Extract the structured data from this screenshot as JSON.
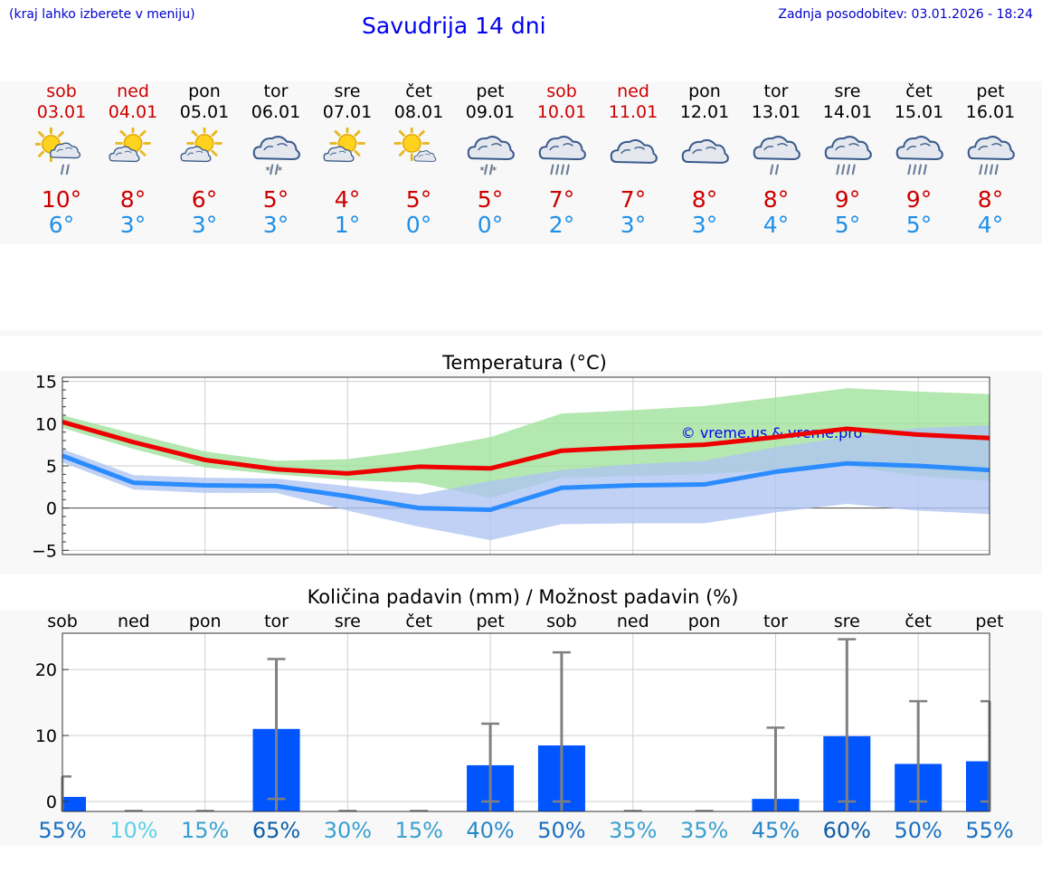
{
  "header": {
    "menu_hint": "(kraj lahko izberete v meniju)",
    "title": "Savudrija 14 dni",
    "updated": "Zadnja posodobitev: 03.01.2026 - 18:24"
  },
  "days": [
    {
      "name": "sob",
      "date": "03.01",
      "weekend": true,
      "icon": "sun-cloud-rain-icon",
      "max": "10°",
      "min": "6°"
    },
    {
      "name": "ned",
      "date": "04.01",
      "weekend": true,
      "icon": "sun-cloud-icon",
      "max": "8°",
      "min": "3°"
    },
    {
      "name": "pon",
      "date": "05.01",
      "weekend": false,
      "icon": "sun-cloud-icon",
      "max": "6°",
      "min": "3°"
    },
    {
      "name": "tor",
      "date": "06.01",
      "weekend": false,
      "icon": "cloud-sleet-icon",
      "max": "5°",
      "min": "3°"
    },
    {
      "name": "sre",
      "date": "07.01",
      "weekend": false,
      "icon": "sun-cloud-icon",
      "max": "4°",
      "min": "1°"
    },
    {
      "name": "čet",
      "date": "08.01",
      "weekend": false,
      "icon": "sun-small-cloud-icon",
      "max": "5°",
      "min": "0°"
    },
    {
      "name": "pet",
      "date": "09.01",
      "weekend": false,
      "icon": "cloud-sleet-icon",
      "max": "5°",
      "min": "0°"
    },
    {
      "name": "sob",
      "date": "10.01",
      "weekend": true,
      "icon": "cloud-heavy-rain-icon",
      "max": "7°",
      "min": "2°"
    },
    {
      "name": "ned",
      "date": "11.01",
      "weekend": true,
      "icon": "cloud-icon",
      "max": "7°",
      "min": "3°"
    },
    {
      "name": "pon",
      "date": "12.01",
      "weekend": false,
      "icon": "cloud-icon",
      "max": "8°",
      "min": "3°"
    },
    {
      "name": "tor",
      "date": "13.01",
      "weekend": false,
      "icon": "cloud-rain-icon",
      "max": "8°",
      "min": "4°"
    },
    {
      "name": "sre",
      "date": "14.01",
      "weekend": false,
      "icon": "cloud-heavy-rain-icon",
      "max": "9°",
      "min": "5°"
    },
    {
      "name": "čet",
      "date": "15.01",
      "weekend": false,
      "icon": "cloud-heavy-rain-icon",
      "max": "9°",
      "min": "5°"
    },
    {
      "name": "pet",
      "date": "16.01",
      "weekend": false,
      "icon": "cloud-heavy-rain-icon",
      "max": "8°",
      "min": "4°"
    }
  ],
  "colors": {
    "max": "#cc0000",
    "min": "#1e8fe8",
    "weekend": "#cc0000",
    "link": "#0000cc"
  },
  "chart_data": [
    {
      "type": "line",
      "title": "Temperatura (°C)",
      "watermark": "© vreme.us & vreme.pro",
      "ylim": [
        -5.5,
        15.5
      ],
      "yticks": [
        -5,
        0,
        5,
        10,
        15
      ],
      "ytick_labels": [
        "−5",
        "0",
        "5",
        "10",
        "15"
      ],
      "x": [
        0,
        1,
        2,
        3,
        4,
        5,
        6,
        7,
        8,
        9,
        10,
        11,
        12,
        13
      ],
      "series": [
        {
          "name": "max",
          "color": "#ee0000",
          "values": [
            10.2,
            7.8,
            5.7,
            4.6,
            4.1,
            4.9,
            4.7,
            6.8,
            7.2,
            7.5,
            8.4,
            9.4,
            8.7,
            8.3
          ]
        },
        {
          "name": "min",
          "color": "#2b8cff",
          "values": [
            6.2,
            3.0,
            2.7,
            2.6,
            1.4,
            0.0,
            -0.2,
            2.4,
            2.7,
            2.8,
            4.3,
            5.3,
            5.0,
            4.5
          ]
        }
      ],
      "bands": [
        {
          "name": "max-range",
          "color": "#9ee19a",
          "low": [
            9.5,
            7.0,
            4.8,
            4.0,
            3.3,
            3.0,
            1.2,
            3.6,
            3.8,
            4.0,
            4.5,
            5.0,
            3.8,
            3.2
          ],
          "high": [
            11.0,
            8.8,
            6.7,
            5.6,
            5.8,
            6.9,
            8.4,
            11.2,
            11.6,
            12.1,
            13.1,
            14.2,
            13.8,
            13.5
          ]
        },
        {
          "name": "min-range",
          "color": "#aec4f2",
          "low": [
            5.4,
            2.2,
            1.8,
            1.8,
            -0.3,
            -2.2,
            -3.8,
            -1.9,
            -1.8,
            -1.8,
            -0.5,
            0.5,
            -0.3,
            -0.7
          ],
          "high": [
            7.0,
            3.9,
            3.6,
            3.5,
            2.6,
            1.6,
            3.2,
            4.5,
            5.2,
            5.6,
            7.2,
            8.4,
            9.5,
            9.8
          ]
        }
      ]
    },
    {
      "type": "bar",
      "title": "Količina padavin (mm) / Možnost padavin (%)",
      "categories": [
        "sob",
        "ned",
        "pon",
        "tor",
        "sre",
        "čet",
        "pet",
        "sob",
        "ned",
        "pon",
        "tor",
        "sre",
        "čet",
        "pet"
      ],
      "ylim": [
        -1.5,
        25.5
      ],
      "yticks": [
        0,
        10,
        20
      ],
      "ytick_labels": [
        "0",
        "10",
        "20"
      ],
      "values": [
        0.7,
        0,
        0,
        11.0,
        0,
        0,
        5.5,
        8.5,
        0,
        0,
        0.4,
        9.9,
        5.7,
        6.1
      ],
      "err_high": [
        3.8,
        0,
        0,
        21.6,
        0,
        0,
        11.8,
        22.6,
        0,
        0,
        11.2,
        24.6,
        15.2,
        15.2
      ],
      "err_low": [
        0,
        0,
        0,
        0.4,
        0,
        0,
        0,
        0,
        0,
        0,
        0,
        0,
        0,
        0
      ],
      "bar_color": "#0055ff",
      "probabilities": [
        "55%",
        "10%",
        "15%",
        "65%",
        "30%",
        "15%",
        "40%",
        "50%",
        "35%",
        "35%",
        "45%",
        "60%",
        "50%",
        "55%"
      ],
      "probability_colors": [
        "#1a70c0",
        "#5ed0e8",
        "#3aa0d0",
        "#0d5fa8",
        "#3aa0d0",
        "#3aa0d0",
        "#2a88c8",
        "#1a70c0",
        "#3aa0d0",
        "#3aa0d0",
        "#2a88c8",
        "#0d5fa8",
        "#1a70c0",
        "#1a70c0"
      ]
    }
  ]
}
